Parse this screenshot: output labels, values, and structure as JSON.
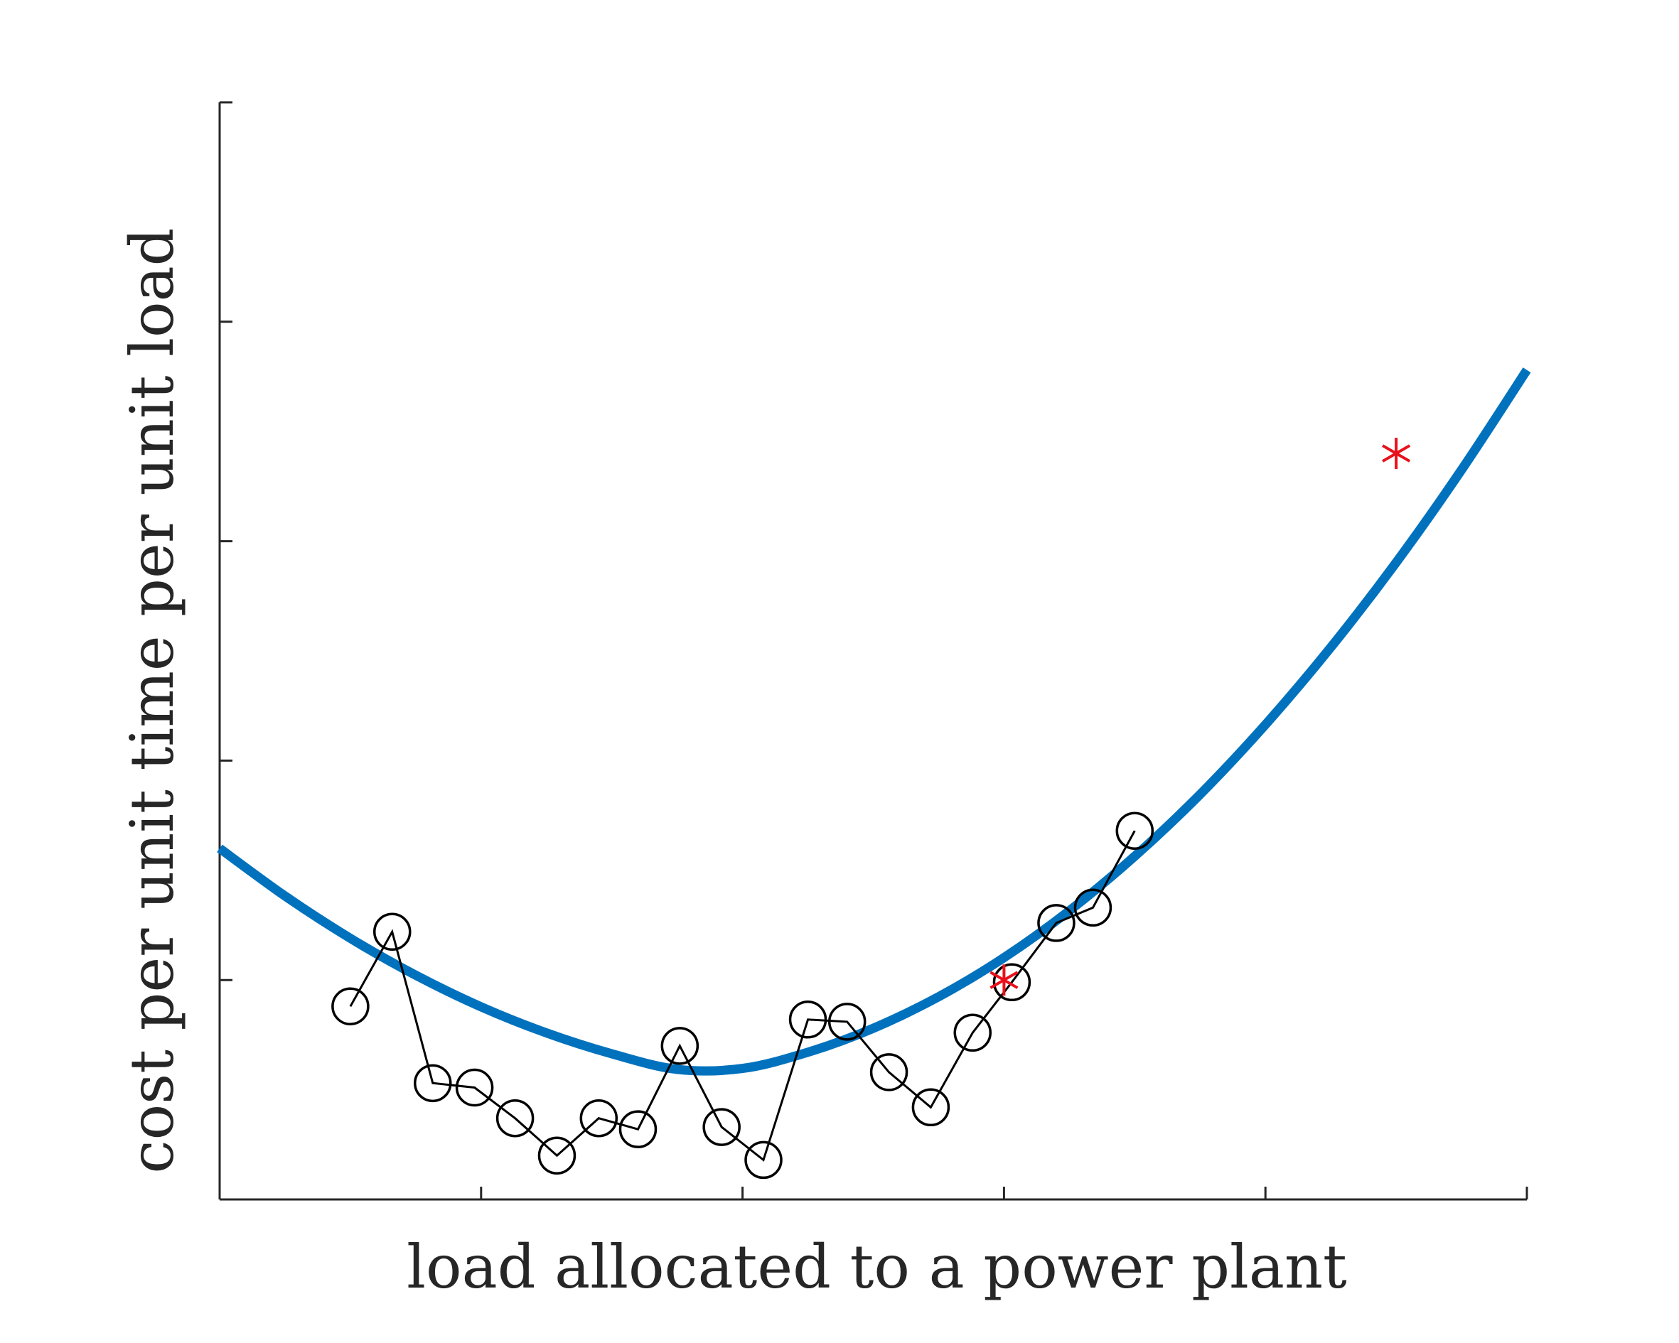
{
  "chart_data": {
    "type": "line",
    "title": "",
    "xlabel": "load allocated to a power plant",
    "ylabel": "cost per unit time per unit load",
    "xlim": [
      0,
      5
    ],
    "ylim": [
      0,
      5
    ],
    "x_ticks": [
      1,
      2,
      3,
      4,
      5
    ],
    "y_ticks": [
      1,
      2,
      3,
      4,
      5
    ],
    "x_tick_labels_shown": false,
    "y_tick_labels_shown": false,
    "grid": false,
    "legend": "none",
    "colors": {
      "axis": "#262626",
      "curve": "#0072BD",
      "samples": "#000000",
      "highlight": "#E8111B"
    },
    "series": [
      {
        "kind": "curve",
        "points": [
          [
            0.0,
            1.6
          ],
          [
            0.25,
            1.383
          ],
          [
            0.5,
            1.19
          ],
          [
            0.75,
            1.022
          ],
          [
            1.0,
            0.878
          ],
          [
            1.25,
            0.759
          ],
          [
            1.5,
            0.664
          ],
          [
            1.75,
            0.593
          ],
          [
            2.0,
            0.597
          ],
          [
            2.25,
            0.671
          ],
          [
            2.5,
            0.78
          ],
          [
            2.75,
            0.924
          ],
          [
            3.0,
            1.102
          ],
          [
            3.25,
            1.316
          ],
          [
            3.5,
            1.564
          ],
          [
            3.75,
            1.846
          ],
          [
            4.0,
            2.164
          ],
          [
            4.25,
            2.516
          ],
          [
            4.5,
            2.903
          ],
          [
            4.75,
            3.325
          ],
          [
            5.0,
            3.78
          ]
        ]
      },
      {
        "kind": "samples",
        "points": [
          [
            0.5,
            0.88
          ],
          [
            0.66,
            1.22
          ],
          [
            0.815,
            0.53
          ],
          [
            0.975,
            0.51
          ],
          [
            1.13,
            0.37
          ],
          [
            1.29,
            0.2
          ],
          [
            1.45,
            0.37
          ],
          [
            1.6,
            0.32
          ],
          [
            1.76,
            0.7
          ],
          [
            1.92,
            0.33
          ],
          [
            2.08,
            0.18
          ],
          [
            2.25,
            0.82
          ],
          [
            2.4,
            0.81
          ],
          [
            2.56,
            0.58
          ],
          [
            2.72,
            0.42
          ],
          [
            2.88,
            0.76
          ],
          [
            3.03,
            0.99
          ],
          [
            3.2,
            1.26
          ],
          [
            3.34,
            1.33
          ],
          [
            3.5,
            1.68
          ]
        ]
      },
      {
        "kind": "highlight",
        "points": [
          [
            3.0,
            1.0
          ],
          [
            4.5,
            3.4
          ]
        ]
      }
    ]
  }
}
